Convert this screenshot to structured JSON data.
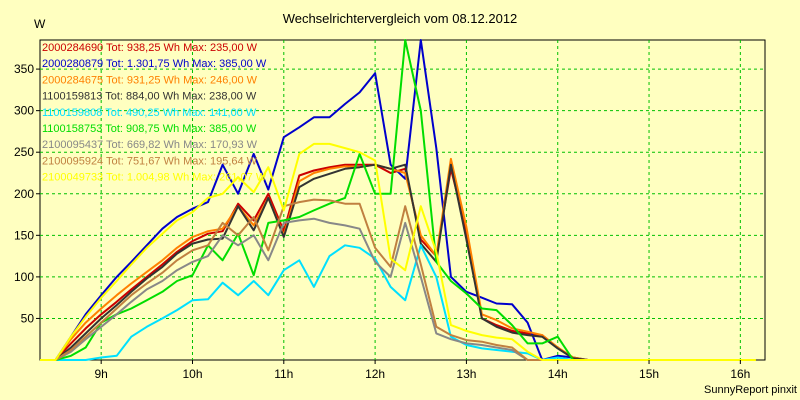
{
  "chart_data": {
    "type": "line",
    "title": "Wechselrichtervergleich vom 08.12.2012",
    "ylabel": "W",
    "footer": "SunnyReport pinxit",
    "ylim": [
      0,
      385
    ],
    "yticks": [
      50,
      100,
      150,
      200,
      250,
      300,
      350
    ],
    "x_hours": [
      9,
      10,
      11,
      12,
      13,
      14,
      15,
      16
    ],
    "x_tick_labels": [
      "9h",
      "10h",
      "11h",
      "12h",
      "13h",
      "14h",
      "15h",
      "16h"
    ],
    "x": [
      8.33,
      8.5,
      8.67,
      8.83,
      9.0,
      9.17,
      9.33,
      9.5,
      9.67,
      9.83,
      10.0,
      10.17,
      10.33,
      10.5,
      10.67,
      10.83,
      11.0,
      11.17,
      11.33,
      11.5,
      11.67,
      11.83,
      12.0,
      12.17,
      12.33,
      12.5,
      12.67,
      12.83,
      13.0,
      13.17,
      13.33,
      13.5,
      13.67,
      13.83,
      14.0,
      14.17,
      14.33,
      14.5,
      14.67,
      14.83,
      15.0,
      15.17,
      15.33,
      15.5,
      15.67,
      15.83,
      16.0,
      16.17
    ],
    "series": [
      {
        "name": "2000284690 Tot: 938,25 Wh Max: 235,00 W",
        "color": "#cc0000",
        "values": [
          0,
          0,
          20,
          38,
          55,
          70,
          85,
          100,
          115,
          130,
          143,
          152,
          155,
          188,
          168,
          200,
          155,
          222,
          228,
          232,
          235,
          235,
          235,
          225,
          230,
          145,
          125,
          230,
          155,
          50,
          42,
          35,
          32,
          30,
          15,
          2,
          0,
          0,
          0,
          0,
          0,
          0,
          0,
          0,
          0,
          0,
          0,
          0
        ]
      },
      {
        "name": "2000280879 Tot: 1.301,75 Wh Max: 385,00 W",
        "color": "#0000cc",
        "values": [
          0,
          0,
          28,
          55,
          78,
          100,
          118,
          138,
          158,
          172,
          182,
          190,
          235,
          200,
          248,
          205,
          268,
          280,
          292,
          292,
          308,
          322,
          345,
          235,
          218,
          385,
          255,
          100,
          82,
          75,
          68,
          67,
          45,
          0,
          5,
          3,
          0,
          0,
          0,
          0,
          0,
          0,
          0,
          0,
          0,
          0,
          0,
          0
        ]
      },
      {
        "name": "2000284675 Tot: 931,25 Wh Max: 246,00 W",
        "color": "#ff8000",
        "values": [
          0,
          0,
          25,
          45,
          62,
          78,
          92,
          106,
          120,
          135,
          148,
          155,
          158,
          185,
          162,
          195,
          150,
          215,
          225,
          230,
          233,
          232,
          235,
          230,
          225,
          150,
          125,
          242,
          160,
          55,
          48,
          38,
          34,
          30,
          15,
          3,
          0,
          0,
          0,
          0,
          0,
          0,
          0,
          0,
          0,
          0,
          0,
          0
        ]
      },
      {
        "name": "1100159813 Tot: 884,00 Wh Max: 238,00 W",
        "color": "#333333",
        "values": [
          0,
          0,
          15,
          32,
          50,
          66,
          82,
          98,
          112,
          128,
          140,
          145,
          146,
          185,
          156,
          195,
          148,
          208,
          218,
          224,
          230,
          232,
          235,
          230,
          235,
          140,
          118,
          235,
          145,
          50,
          40,
          33,
          30,
          28,
          14,
          2,
          0,
          0,
          0,
          0,
          0,
          0,
          0,
          0,
          0,
          0,
          0,
          0
        ]
      },
      {
        "name": "1100159808 Tot: 490,25 Wh Max: 141,00 W",
        "color": "#00e0ff",
        "values": [
          0,
          0,
          0,
          0,
          3,
          5,
          28,
          40,
          50,
          60,
          72,
          73,
          93,
          78,
          95,
          78,
          108,
          120,
          88,
          125,
          138,
          135,
          122,
          88,
          72,
          138,
          100,
          28,
          18,
          14,
          12,
          10,
          8,
          0,
          3,
          0,
          0,
          0,
          0,
          0,
          0,
          0,
          0,
          0,
          0,
          0,
          0,
          0
        ]
      },
      {
        "name": "1100158753 Tot: 908,75 Wh Max: 385,00 W",
        "color": "#00dd00",
        "values": [
          0,
          0,
          5,
          15,
          45,
          55,
          62,
          72,
          82,
          95,
          102,
          138,
          120,
          152,
          102,
          165,
          168,
          172,
          180,
          188,
          195,
          248,
          200,
          200,
          385,
          300,
          118,
          95,
          80,
          62,
          60,
          42,
          20,
          20,
          28,
          0,
          0,
          0,
          0,
          0,
          0,
          0,
          0,
          0,
          0,
          0,
          0,
          0
        ]
      },
      {
        "name": "2100095437 Tot: 669,82 Wh Max: 170,93 W",
        "color": "#888888",
        "values": [
          0,
          0,
          10,
          25,
          40,
          55,
          70,
          85,
          95,
          108,
          118,
          125,
          150,
          138,
          150,
          120,
          165,
          168,
          170,
          165,
          162,
          158,
          118,
          100,
          165,
          100,
          32,
          25,
          20,
          18,
          15,
          12,
          0,
          0,
          0,
          0,
          0,
          0,
          0,
          0,
          0,
          0,
          0,
          0,
          0,
          0,
          0,
          0
        ]
      },
      {
        "name": "2100095924 Tot: 751,67 Wh Max: 195,64 W",
        "color": "#c08040",
        "values": [
          0,
          0,
          12,
          28,
          45,
          62,
          78,
          92,
          105,
          120,
          132,
          138,
          165,
          150,
          172,
          132,
          185,
          190,
          193,
          192,
          188,
          188,
          135,
          112,
          185,
          115,
          40,
          30,
          24,
          22,
          18,
          15,
          0,
          0,
          0,
          0,
          0,
          0,
          0,
          0,
          0,
          0,
          0,
          0,
          0,
          0,
          0,
          0
        ]
      },
      {
        "name": "2100049733 Tot: 1.004,98 Wh Max: 261,07 W",
        "color": "#ffff00",
        "values": [
          0,
          0,
          28,
          52,
          75,
          95,
          115,
          135,
          152,
          168,
          178,
          195,
          200,
          220,
          202,
          232,
          180,
          248,
          260,
          260,
          255,
          250,
          240,
          122,
          108,
          185,
          130,
          42,
          35,
          30,
          27,
          25,
          10,
          0,
          0,
          0,
          0,
          0,
          0,
          0,
          0,
          0,
          0,
          0,
          0,
          0,
          0,
          0
        ]
      }
    ],
    "grid": true,
    "legend_placement": "top-left"
  }
}
